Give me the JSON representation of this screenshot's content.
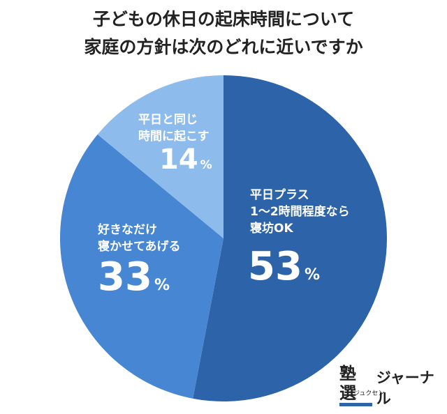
{
  "title": [
    "子どもの休日の起床時間について",
    "家庭の方針は次のどれに近いですか"
  ],
  "chart_data": {
    "type": "pie",
    "start": "top",
    "direction": "clockwise",
    "slices": [
      {
        "label": [
          "平日プラス",
          "1〜2時間程度なら",
          "寝坊OK"
        ],
        "value": 53,
        "color": "#2d63a8"
      },
      {
        "label": [
          "好きなだけ",
          "寝かせてあげる"
        ],
        "value": 33,
        "color": "#4686d3"
      },
      {
        "label": [
          "平日と同じ",
          "時間に起こす"
        ],
        "value": 14,
        "color": "#8dbcec"
      }
    ],
    "unit": "%"
  },
  "logo": {
    "kanji": "塾選",
    "kana": "ジュクセン",
    "text": "ジャーナル"
  }
}
